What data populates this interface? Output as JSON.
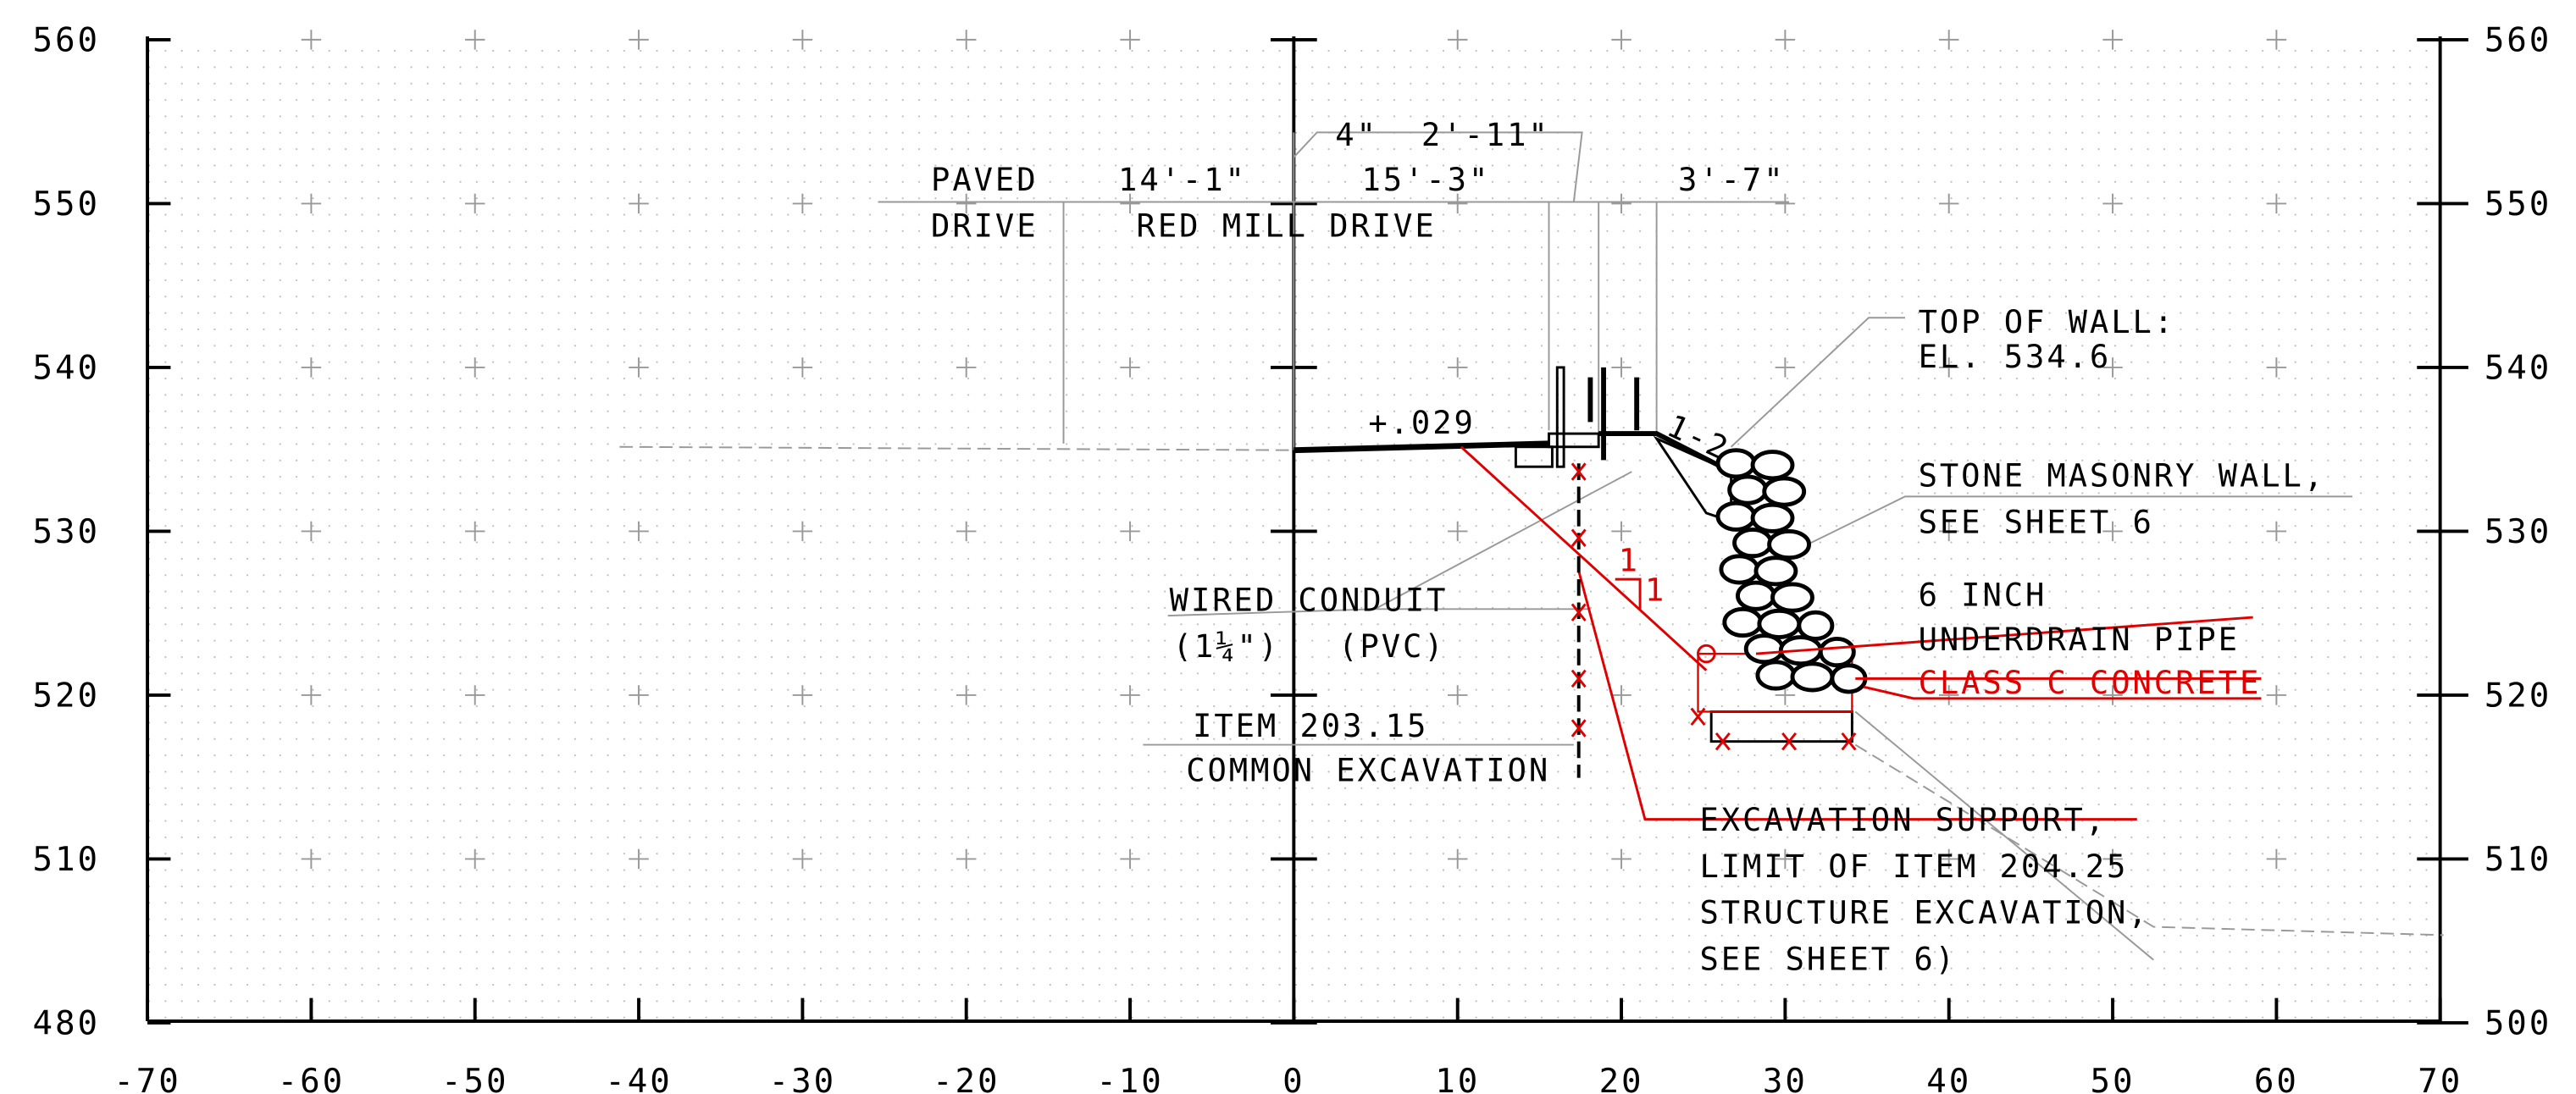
{
  "axes": {
    "left": [
      560,
      550,
      540,
      530,
      520,
      510,
      480
    ],
    "right": [
      560,
      550,
      540,
      530,
      520,
      510,
      500
    ],
    "bottom": [
      -70,
      -60,
      -50,
      -40,
      -30,
      -20,
      -10,
      0,
      10,
      20,
      30,
      40,
      50,
      60,
      70
    ]
  },
  "labels": {
    "paved": "PAVED",
    "drive": "DRIVE",
    "dim_14_1": "14'-1\"",
    "red_mill_drive": "RED MILL DRIVE",
    "dim_4": "4\"",
    "dim_2_11": "2'-11\"",
    "dim_15_3": "15'-3\"",
    "dim_3_7": "3'-7\"",
    "slope_029": "+.029",
    "slope_1_2": "1-2",
    "top_of_wall": "TOP OF WALL:",
    "top_of_wall_el": "EL. 534.6",
    "stone_wall": "STONE MASONRY WALL,",
    "stone_wall_sheet": "SEE SHEET 6",
    "six_inch": "6 INCH",
    "underdrain": "UNDERDRAIN PIPE",
    "class_c": "CLASS C CONCRETE",
    "wired_conduit": "WIRED CONDUIT",
    "conduit_size": "(1¼\")",
    "conduit_pvc": "(PVC)",
    "item_203": "ITEM 203.15",
    "common_exc": "COMMON EXCAVATION",
    "exc_support": "EXCAVATION SUPPORT,",
    "limit_item": "LIMIT OF ITEM 204.25",
    "struct_exc": "STRUCTURE EXCAVATION,",
    "see_sheet": "SEE SHEET 6)",
    "slope_rise": "1",
    "slope_run": "1"
  }
}
